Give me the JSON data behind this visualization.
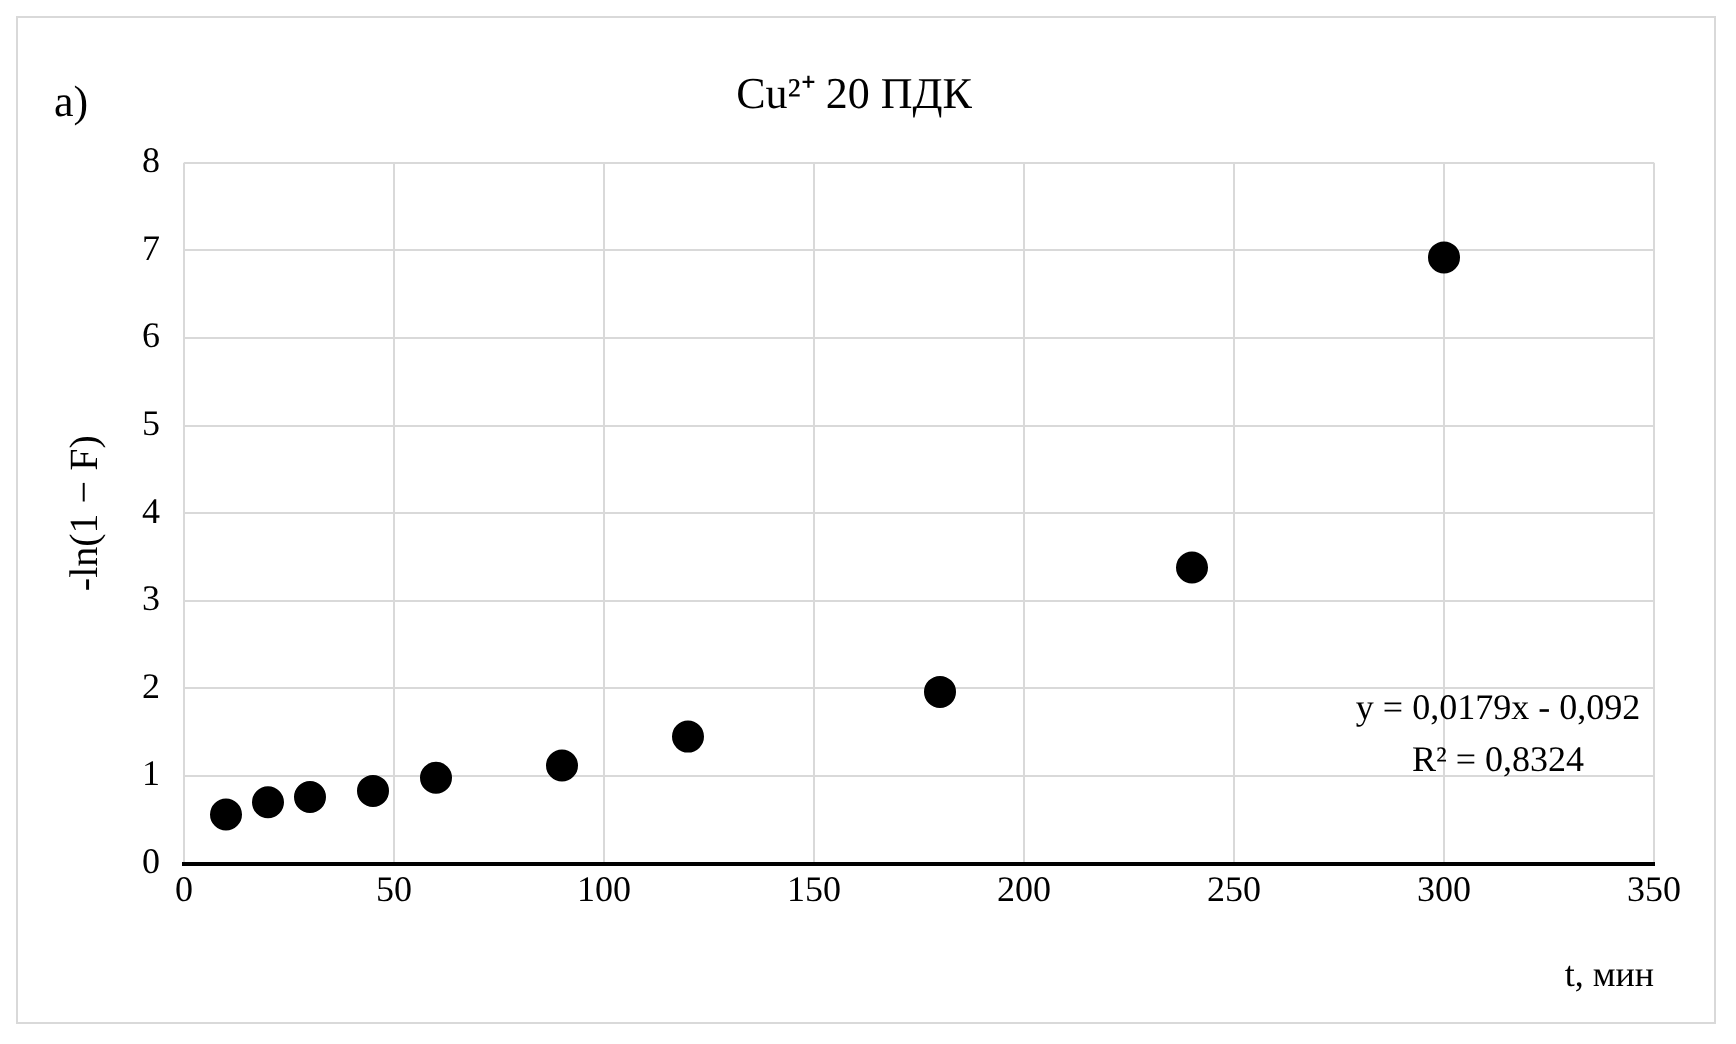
{
  "chart_data": {
    "type": "scatter",
    "title": "Cu²⁺ 20 ПДК",
    "xlabel": "t, мин",
    "ylabel": "-ln(1 − F)",
    "annotations": [
      "a)",
      "y = 0,0179x - 0,092",
      "R² = 0,8324"
    ],
    "x": [
      10,
      20,
      30,
      45,
      60,
      90,
      120,
      180,
      240,
      300
    ],
    "series": [
      {
        "color": "#000000",
        "values": [
          0.56,
          0.7,
          0.76,
          0.83,
          0.98,
          1.12,
          1.45,
          1.96,
          3.38,
          6.92
        ]
      }
    ],
    "xlim": [
      0,
      350
    ],
    "xticks": [
      0,
      50,
      100,
      150,
      200,
      250,
      300,
      350
    ],
    "ylim": [
      0,
      8
    ],
    "yticks": [
      0,
      1,
      2,
      3,
      4,
      5,
      6,
      7,
      8
    ],
    "grid": true,
    "legend": false,
    "marker": "circle"
  }
}
